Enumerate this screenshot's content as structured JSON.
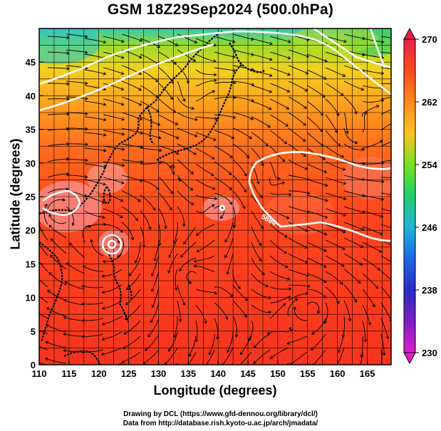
{
  "title": "GSM 18Z29Sep2024 (500.0hPa)",
  "xlabel": "Longitude (degrees)",
  "ylabel": "Latitude  (degrees)",
  "credit_line1": "Drawing by DCL (https://www.gfd-dennou.org/library/dcl/)",
  "credit_line2": "Data from http://database.rish.kyoto-u.ac.jp/arch/jmadata/",
  "map": {
    "lon_range": [
      110,
      169
    ],
    "lat_range": [
      0,
      50
    ],
    "x_ticks": [
      "110",
      "115",
      "120",
      "125",
      "130",
      "135",
      "140",
      "145",
      "150",
      "155",
      "160",
      "165"
    ],
    "y_ticks": [
      "0",
      "5",
      "10",
      "15",
      "20",
      "25",
      "30",
      "35",
      "40",
      "45"
    ],
    "grid": true,
    "contour_label": "5880",
    "colorbar": {
      "min": 230,
      "max": 270,
      "labels": [
        "270",
        "262",
        "254",
        "246",
        "238",
        "230"
      ],
      "colors": [
        "#e8204a",
        "#ff4a1e",
        "#ff8a1e",
        "#ffc21e",
        "#e6e21e",
        "#76e21e",
        "#1ed06a",
        "#1eb4d8",
        "#1e66e8",
        "#2a2ac8",
        "#7a1ec8",
        "#e01ec8"
      ]
    }
  }
}
